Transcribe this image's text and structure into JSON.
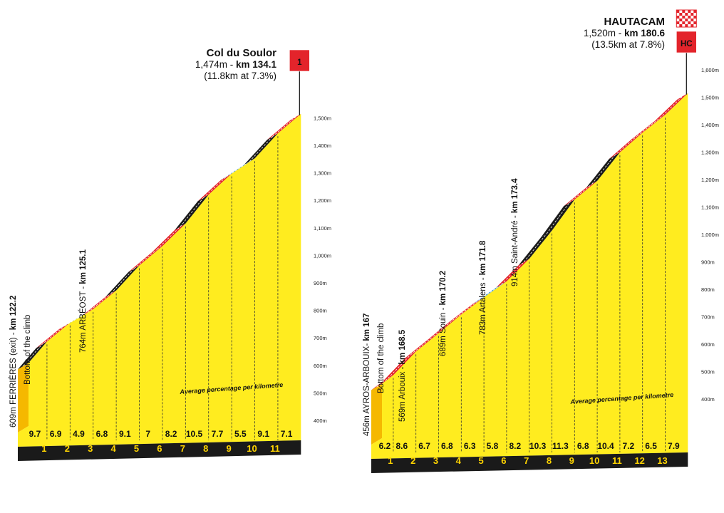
{
  "chart_data": [
    {
      "type": "area",
      "climb": {
        "name": "Col du Soulor",
        "altitude": "1,474m",
        "km_label": "km 134.1",
        "stats": "(11.8km at 7.3%)",
        "category": "1"
      },
      "y_ticks": [
        "400m",
        "500m",
        "600m",
        "700m",
        "800m",
        "900m",
        "1,000m",
        "1,100m",
        "1,200m",
        "1,300m",
        "1,400m",
        "1,500m"
      ],
      "ylim": [
        400,
        1500
      ],
      "average_label": "Average percentage per kilometre",
      "km_markers": [
        "1",
        "2",
        "3",
        "4",
        "5",
        "6",
        "7",
        "8",
        "9",
        "10",
        "11"
      ],
      "segment_gradients": [
        "9.7",
        "6.9",
        "4.9",
        "6.8",
        "9.1",
        "7",
        "8.2",
        "10.5",
        "7.7",
        "5.5",
        "9.1",
        "7.1"
      ],
      "segment_length_km": [
        0.8,
        1,
        1,
        1,
        1,
        1,
        1,
        1,
        1,
        1,
        1,
        1
      ],
      "start_altitude": 609,
      "landmarks": [
        {
          "label": "609m FERRIÈRES (exit) - ",
          "km": "km 122.2",
          "line2": "Bottom of the climb"
        },
        {
          "label": "764m ARBÉOST - ",
          "km": "km 125.1",
          "line2": ""
        }
      ]
    },
    {
      "type": "area",
      "climb": {
        "name": "HAUTACAM",
        "altitude": "1,520m",
        "km_label": "km 180.6",
        "stats": "(13.5km at 7.8%)",
        "category": "HC"
      },
      "y_ticks": [
        "400m",
        "500m",
        "600m",
        "700m",
        "800m",
        "900m",
        "1,000m",
        "1,100m",
        "1,200m",
        "1,300m",
        "1,400m",
        "1,500m",
        "1,600m"
      ],
      "ylim": [
        400,
        1600
      ],
      "average_label": "Average percentage per kilometre",
      "km_markers": [
        "1",
        "2",
        "3",
        "4",
        "5",
        "6",
        "7",
        "8",
        "9",
        "10",
        "11",
        "12",
        "13"
      ],
      "segment_gradients": [
        "6.2",
        "8.6",
        "6.7",
        "6.8",
        "6.3",
        "5.8",
        "8.2",
        "10.3",
        "11.3",
        "6.8",
        "10.4",
        "7.2",
        "6.5",
        "7.9"
      ],
      "segment_length_km": [
        0.5,
        1,
        1,
        1,
        1,
        1,
        1,
        1,
        1,
        1,
        1,
        1,
        1,
        1
      ],
      "start_altitude": 456,
      "landmarks": [
        {
          "label": "456m AYROS-ARBOUIX- ",
          "km": "km 167",
          "line2": "Bottom of the climb"
        },
        {
          "label": "569m Arbouix - ",
          "km": "km 168.5",
          "line2": ""
        },
        {
          "label": "689m Souin - ",
          "km": "km 170.2",
          "line2": ""
        },
        {
          "label": "783m Artalens - ",
          "km": "km 171.8",
          "line2": ""
        },
        {
          "label": "914m Saint-André - ",
          "km": "km 173.4",
          "line2": ""
        }
      ]
    }
  ],
  "colors": {
    "yellow": "#ffec1f",
    "yellow_side": "#f5b800",
    "black": "#1a1a1a",
    "red": "#e3242b",
    "blue": "#2b8fd6",
    "flag_red": "#e3242b"
  }
}
